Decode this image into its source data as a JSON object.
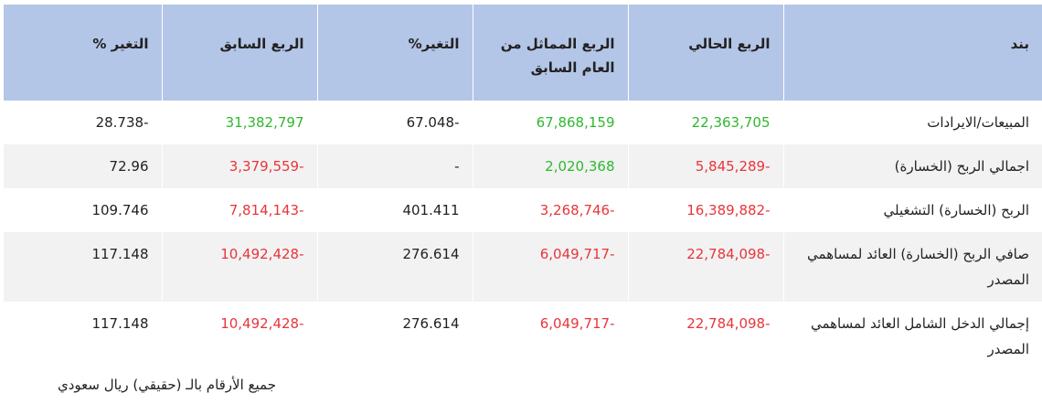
{
  "table": {
    "headers": [
      "بند",
      "الربع الحالي",
      "الربع المماثل من العام السابق",
      "التغير%",
      "الربع السابق",
      "التغير %"
    ],
    "rows": [
      [
        "المبيعات/الايرادات",
        "22,363,705",
        "67,868,159",
        "-67.048",
        "31,382,797",
        "-28.738"
      ],
      [
        "اجمالي الربح (الخسارة)",
        "-5,845,289",
        "2,020,368",
        "-",
        "-3,379,559",
        "72.96"
      ],
      [
        "الربح (الخسارة) التشغيلي",
        "-16,389,882",
        "-3,268,746",
        "401.411",
        "-7,814,143",
        "109.746"
      ],
      [
        "صافي الربح (الخسارة) العائد لمساهمي المصدر",
        "-22,784,098",
        "-6,049,717",
        "276.614",
        "-10,492,428",
        "117.148"
      ],
      [
        "إجمالي الدخل الشامل العائد لمساهمي المصدر",
        "-22,784,098",
        "-6,049,717",
        "276.614",
        "-10,492,428",
        "117.148"
      ]
    ]
  },
  "footnote": "جميع الأرقام بالـ (حقيقي) ريال سعودي"
}
